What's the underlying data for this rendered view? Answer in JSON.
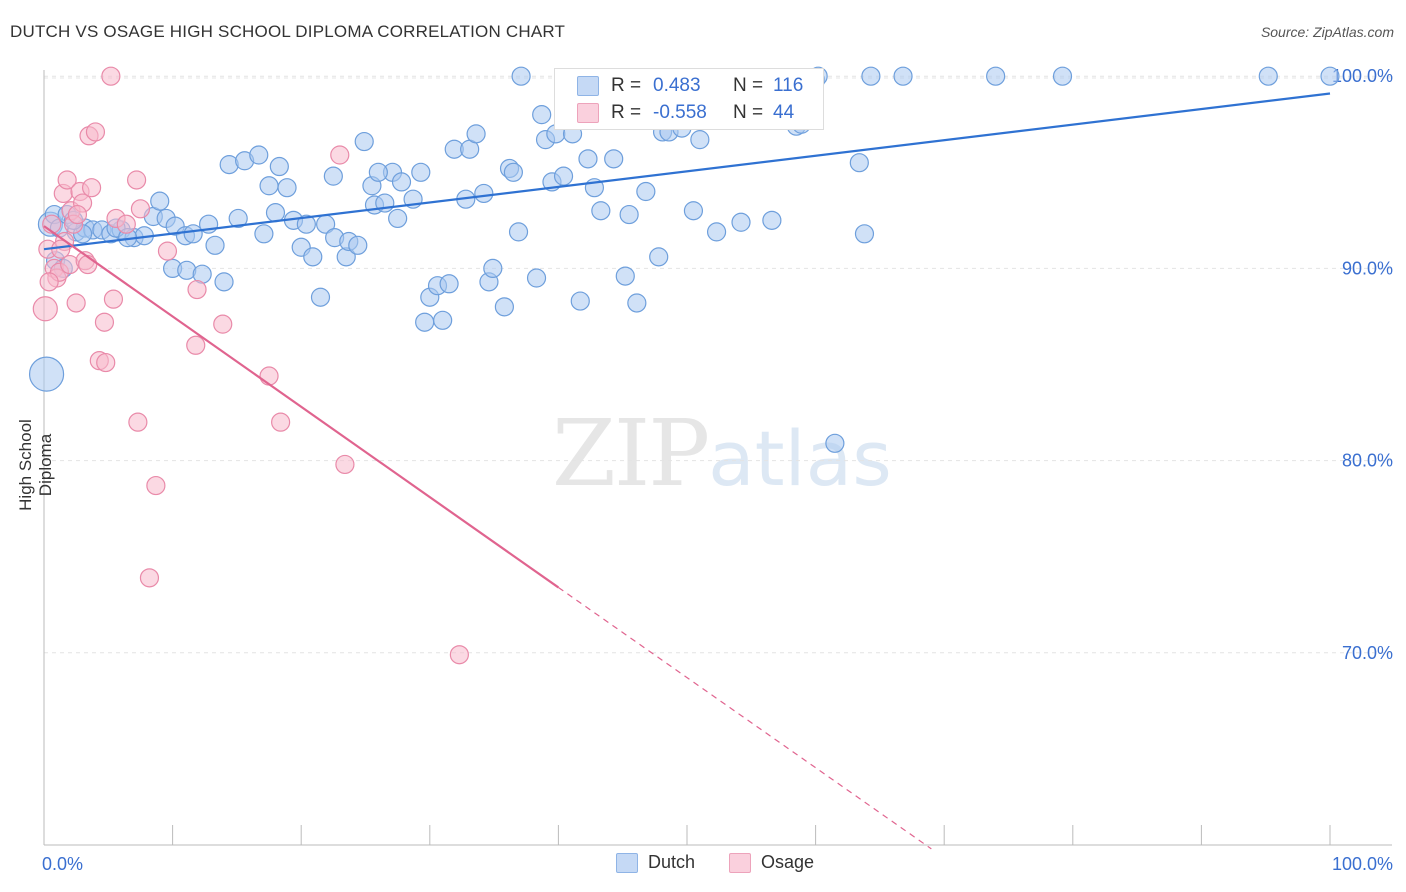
{
  "title": "DUTCH VS OSAGE HIGH SCHOOL DIPLOMA CORRELATION CHART",
  "source": "Source: ZipAtlas.com",
  "watermark": {
    "zip": "ZIP",
    "atlas": "atlas"
  },
  "legend": {
    "r_label": "R =",
    "n_label": "N =",
    "dutch": {
      "r": "0.483",
      "n": "116"
    },
    "osage": {
      "r": "-0.558",
      "n": "44"
    }
  },
  "colors": {
    "dutch_fill": "#a9c8f0",
    "dutch_stroke": "#6e9fdc",
    "dutch_line": "#2f72d2",
    "osage_fill": "#f7b9cc",
    "osage_stroke": "#e98aa9",
    "osage_line": "#e0648f",
    "axis_text": "#3a6fd0"
  },
  "chart_data": {
    "type": "scatter",
    "title": "DUTCH VS OSAGE HIGH SCHOOL DIPLOMA CORRELATION CHART",
    "xlabel": "",
    "ylabel": "High School Diploma",
    "xlim": [
      0,
      100
    ],
    "ylim": [
      60,
      101.5
    ],
    "x_tick_labels": [
      "0.0%",
      "100.0%"
    ],
    "y_ticks": [
      70,
      80,
      90,
      100
    ],
    "y_tick_labels": [
      "70.0%",
      "80.0%",
      "90.0%",
      "100.0%"
    ],
    "grid": true,
    "legend_position": "bottom",
    "series": [
      {
        "name": "Dutch",
        "trend": {
          "x0": 0,
          "y0": 91.0,
          "x1": 100,
          "y1": 99.1
        },
        "points": [
          [
            0.2,
            84.5,
            3
          ],
          [
            0.5,
            92.3,
            2
          ],
          [
            0.8,
            92.8,
            1
          ],
          [
            1.2,
            92.1,
            1
          ],
          [
            1.8,
            92.8,
            1
          ],
          [
            2.5,
            91.9,
            1
          ],
          [
            3.2,
            92.1,
            1
          ],
          [
            3.8,
            92.0,
            1
          ],
          [
            4.5,
            92.0,
            1
          ],
          [
            5.2,
            91.8,
            1
          ],
          [
            6.0,
            92.0,
            1
          ],
          [
            7.0,
            91.6,
            1
          ],
          [
            7.8,
            91.7,
            1
          ],
          [
            3.0,
            91.8,
            1
          ],
          [
            8.5,
            92.7,
            1
          ],
          [
            9.0,
            93.5,
            1
          ],
          [
            9.5,
            92.6,
            1
          ],
          [
            10.2,
            92.2,
            1
          ],
          [
            11.0,
            91.7,
            1
          ],
          [
            11.6,
            91.8,
            1
          ],
          [
            12.8,
            92.3,
            1
          ],
          [
            13.3,
            91.2,
            1
          ],
          [
            10.0,
            90.0,
            1
          ],
          [
            11.1,
            89.9,
            1
          ],
          [
            12.3,
            89.7,
            1
          ],
          [
            14.0,
            89.3,
            1
          ],
          [
            14.4,
            95.4,
            1
          ],
          [
            15.1,
            92.6,
            1
          ],
          [
            15.6,
            95.6,
            1
          ],
          [
            16.7,
            95.9,
            1
          ],
          [
            17.1,
            91.8,
            1
          ],
          [
            17.5,
            94.3,
            1
          ],
          [
            18.0,
            92.9,
            1
          ],
          [
            18.3,
            95.3,
            1
          ],
          [
            18.9,
            94.2,
            1
          ],
          [
            19.4,
            92.5,
            1
          ],
          [
            20.0,
            91.1,
            1
          ],
          [
            20.4,
            92.3,
            1
          ],
          [
            20.9,
            90.6,
            1
          ],
          [
            21.5,
            88.5,
            1
          ],
          [
            21.9,
            92.3,
            1
          ],
          [
            22.5,
            94.8,
            1
          ],
          [
            22.6,
            91.6,
            1
          ],
          [
            23.5,
            90.6,
            1
          ],
          [
            23.7,
            91.4,
            1
          ],
          [
            24.4,
            91.2,
            1
          ],
          [
            24.9,
            96.6,
            1
          ],
          [
            25.5,
            94.3,
            1
          ],
          [
            25.7,
            93.3,
            1
          ],
          [
            26.5,
            93.4,
            1
          ],
          [
            27.1,
            95.0,
            1
          ],
          [
            27.5,
            92.6,
            1
          ],
          [
            27.8,
            94.5,
            1
          ],
          [
            28.7,
            93.6,
            1
          ],
          [
            29.3,
            95.0,
            1
          ],
          [
            29.6,
            87.2,
            1
          ],
          [
            30.0,
            88.5,
            1
          ],
          [
            30.6,
            89.1,
            1
          ],
          [
            31.0,
            87.3,
            1
          ],
          [
            31.5,
            89.2,
            1
          ],
          [
            31.9,
            96.2,
            1
          ],
          [
            32.8,
            93.6,
            1
          ],
          [
            33.1,
            96.2,
            1
          ],
          [
            33.6,
            97.0,
            1
          ],
          [
            34.2,
            93.9,
            1
          ],
          [
            34.6,
            89.3,
            1
          ],
          [
            34.9,
            90.0,
            1
          ],
          [
            35.8,
            88.0,
            1
          ],
          [
            36.2,
            95.2,
            1
          ],
          [
            36.5,
            95.0,
            1
          ],
          [
            36.9,
            91.9,
            1
          ],
          [
            37.1,
            100.0,
            1
          ],
          [
            38.3,
            89.5,
            1
          ],
          [
            38.7,
            98.0,
            1
          ],
          [
            39.0,
            96.7,
            1
          ],
          [
            39.5,
            94.5,
            1
          ],
          [
            39.8,
            97.0,
            1
          ],
          [
            40.4,
            94.8,
            1
          ],
          [
            41.1,
            97.0,
            1
          ],
          [
            41.7,
            88.3,
            1
          ],
          [
            42.3,
            95.7,
            1
          ],
          [
            42.8,
            94.2,
            1
          ],
          [
            43.3,
            93.0,
            1
          ],
          [
            44.3,
            95.7,
            1
          ],
          [
            45.2,
            89.6,
            1
          ],
          [
            45.5,
            92.8,
            1
          ],
          [
            46.1,
            88.2,
            1
          ],
          [
            46.8,
            94.0,
            1
          ],
          [
            47.8,
            90.6,
            1
          ],
          [
            48.1,
            97.1,
            1
          ],
          [
            48.6,
            97.1,
            1
          ],
          [
            49.6,
            97.3,
            1
          ],
          [
            50.5,
            93.0,
            1
          ],
          [
            51.0,
            96.7,
            1
          ],
          [
            52.1,
            99.8,
            1
          ],
          [
            52.3,
            91.9,
            1
          ],
          [
            53.4,
            98.8,
            1
          ],
          [
            54.2,
            92.4,
            1
          ],
          [
            56.6,
            92.5,
            1
          ],
          [
            58.5,
            97.4,
            1
          ],
          [
            58.9,
            97.5,
            1
          ],
          [
            60.0,
            99.8,
            1
          ],
          [
            60.2,
            100.0,
            1
          ],
          [
            61.5,
            80.9,
            1
          ],
          [
            63.4,
            95.5,
            1
          ],
          [
            63.8,
            91.8,
            1
          ],
          [
            64.3,
            100.0,
            1
          ],
          [
            66.8,
            100.0,
            1
          ],
          [
            74.0,
            100.0,
            1
          ],
          [
            79.2,
            100.0,
            1
          ],
          [
            95.2,
            100.0,
            1
          ],
          [
            100.0,
            100.0,
            1
          ],
          [
            0.9,
            90.4,
            1
          ],
          [
            1.5,
            90.0,
            1
          ],
          [
            2.3,
            92.5,
            1
          ],
          [
            5.6,
            92.1,
            1
          ],
          [
            6.5,
            91.6,
            1
          ],
          [
            26.0,
            95.0,
            1
          ]
        ]
      },
      {
        "name": "Osage",
        "trend": {
          "x0": 0,
          "y0": 92.2,
          "x1": 40,
          "y1": 73.4
        },
        "trend_dashed": {
          "x0": 40,
          "y0": 73.4,
          "x1": 69,
          "y1": 59.8
        },
        "points": [
          [
            0.1,
            87.9,
            2
          ],
          [
            0.3,
            91.0,
            1
          ],
          [
            0.6,
            92.3,
            1
          ],
          [
            0.8,
            90.0,
            1
          ],
          [
            1.0,
            89.5,
            1
          ],
          [
            1.2,
            89.8,
            1
          ],
          [
            1.5,
            93.9,
            1
          ],
          [
            1.6,
            91.4,
            1
          ],
          [
            1.8,
            94.6,
            1
          ],
          [
            2.0,
            90.2,
            1
          ],
          [
            2.1,
            93.0,
            1
          ],
          [
            2.3,
            92.3,
            1
          ],
          [
            2.5,
            88.2,
            1
          ],
          [
            2.8,
            94.0,
            1
          ],
          [
            3.0,
            93.4,
            1
          ],
          [
            3.2,
            90.4,
            1
          ],
          [
            3.4,
            90.2,
            1
          ],
          [
            3.5,
            96.9,
            1
          ],
          [
            3.7,
            94.2,
            1
          ],
          [
            4.0,
            97.1,
            1
          ],
          [
            4.3,
            85.2,
            1
          ],
          [
            4.7,
            87.2,
            1
          ],
          [
            4.8,
            85.1,
            1
          ],
          [
            5.2,
            100.0,
            1
          ],
          [
            5.4,
            88.4,
            1
          ],
          [
            5.6,
            92.6,
            1
          ],
          [
            6.4,
            92.3,
            1
          ],
          [
            7.2,
            94.6,
            1
          ],
          [
            7.3,
            82.0,
            1
          ],
          [
            7.5,
            93.1,
            1
          ],
          [
            8.2,
            73.9,
            1
          ],
          [
            8.7,
            78.7,
            1
          ],
          [
            9.6,
            90.9,
            1
          ],
          [
            11.8,
            86.0,
            1
          ],
          [
            11.9,
            88.9,
            1
          ],
          [
            13.9,
            87.1,
            1
          ],
          [
            17.5,
            84.4,
            1
          ],
          [
            18.4,
            82.0,
            1
          ],
          [
            23.0,
            95.9,
            1
          ],
          [
            23.4,
            79.8,
            1
          ],
          [
            32.3,
            69.9,
            1
          ],
          [
            0.4,
            89.3,
            1
          ],
          [
            1.3,
            91.0,
            1
          ],
          [
            2.6,
            92.8,
            1
          ]
        ]
      }
    ]
  }
}
